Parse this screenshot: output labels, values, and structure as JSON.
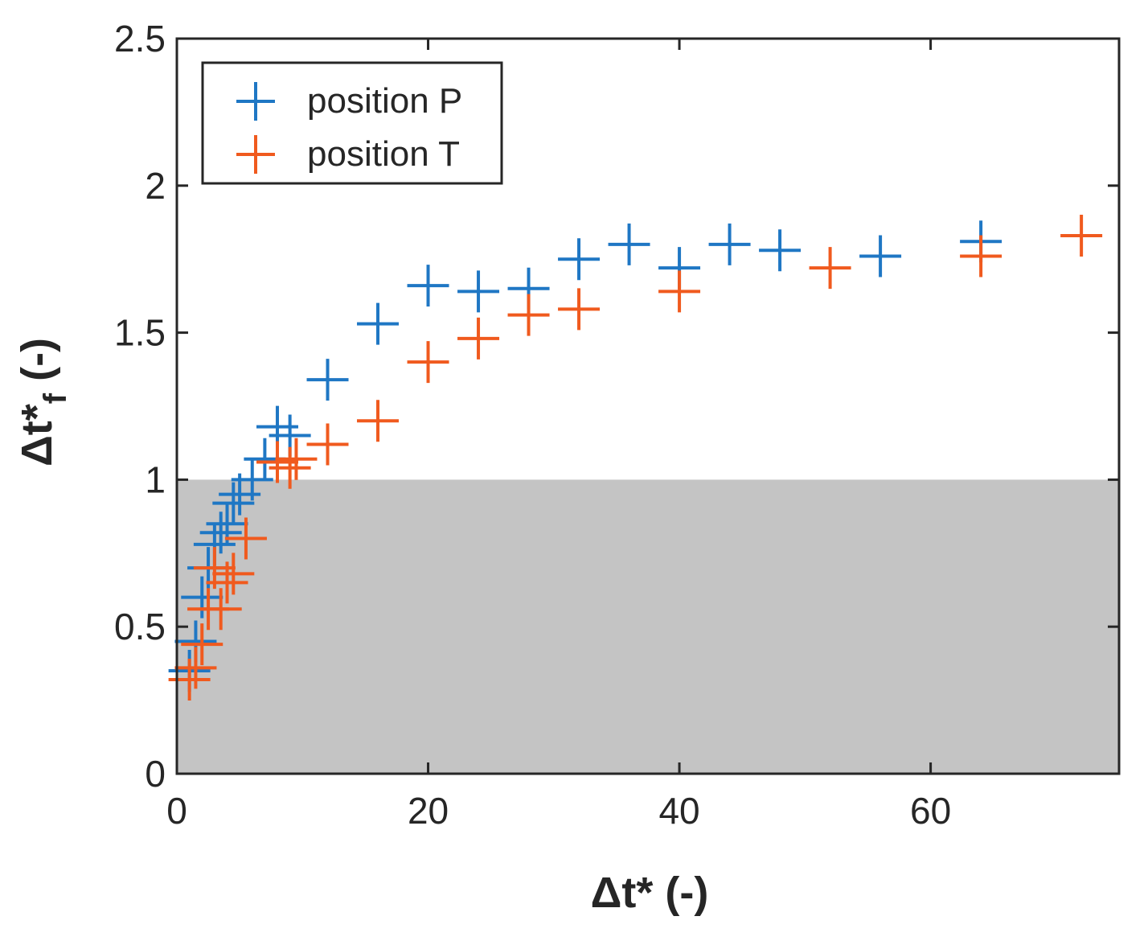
{
  "chart_data": {
    "type": "scatter",
    "xlabel": "Δt* (-)",
    "ylabel_main": "Δt*",
    "ylabel_sub": "f",
    "ylabel_tail": " (-)",
    "xlim": [
      0,
      75
    ],
    "ylim": [
      0,
      2.5
    ],
    "xticks": [
      0,
      20,
      40,
      60
    ],
    "yticks": [
      0,
      0.5,
      1,
      1.5,
      2,
      2.5
    ],
    "xtick_labels": [
      "0",
      "20",
      "40",
      "60"
    ],
    "ytick_labels": [
      "0",
      "0.5",
      "1",
      "1.5",
      "2",
      "2.5"
    ],
    "shaded_region": {
      "y_from": 0,
      "y_to": 1,
      "color": "#c4c4c4"
    },
    "legend": {
      "location": "top-left"
    },
    "series": [
      {
        "name": "position P",
        "color": "#1f77c4",
        "x": [
          1.0,
          1.5,
          2.0,
          2.5,
          3.0,
          3.5,
          4.0,
          4.5,
          5.0,
          6.0,
          7.0,
          8.0,
          9.0,
          12,
          16,
          20,
          24,
          28,
          32,
          36,
          40,
          44,
          48,
          56,
          64
        ],
        "y": [
          0.35,
          0.45,
          0.6,
          0.7,
          0.78,
          0.82,
          0.85,
          0.92,
          0.95,
          1.0,
          1.07,
          1.18,
          1.15,
          1.34,
          1.53,
          1.66,
          1.64,
          1.65,
          1.75,
          1.8,
          1.72,
          1.8,
          1.78,
          1.76,
          1.81
        ]
      },
      {
        "name": "position T",
        "color": "#f05a1e",
        "x": [
          1.0,
          1.5,
          2.0,
          2.5,
          3.0,
          3.5,
          4.0,
          4.5,
          5.5,
          8.0,
          9.0,
          9.5,
          12,
          16,
          20,
          24,
          28,
          32,
          40,
          52,
          64,
          72
        ],
        "y": [
          0.32,
          0.36,
          0.44,
          0.56,
          0.7,
          0.56,
          0.65,
          0.68,
          0.8,
          1.06,
          1.04,
          1.07,
          1.12,
          1.2,
          1.4,
          1.48,
          1.56,
          1.58,
          1.64,
          1.72,
          1.76,
          1.83
        ]
      }
    ]
  }
}
